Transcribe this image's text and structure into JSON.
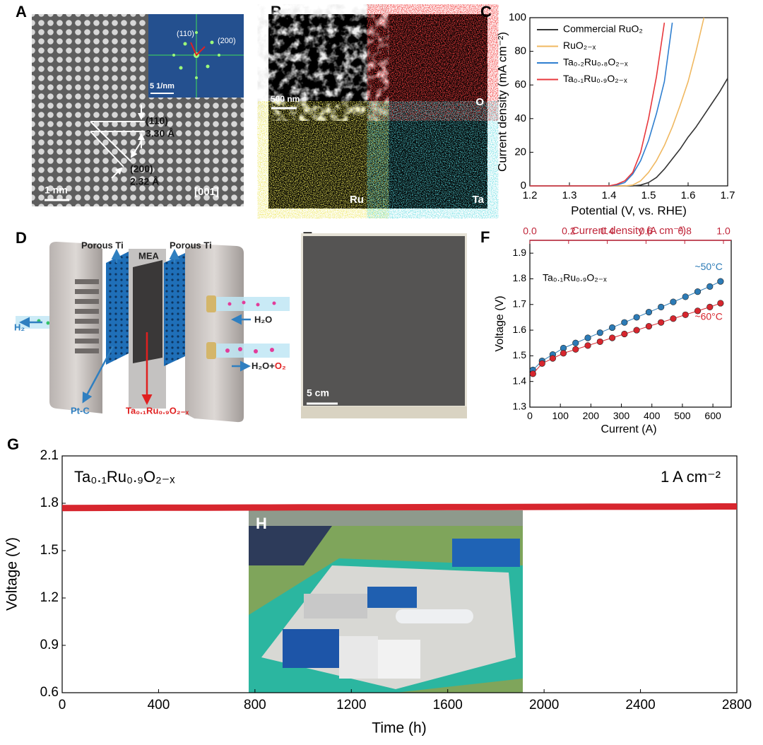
{
  "panels": {
    "a": {
      "label": "A",
      "fft_spot_1": "(110)",
      "fft_spot_2": "(200)",
      "fft_scale": "5 1/nm",
      "plane_1": "(110)",
      "spacing_1": "3.30 Å",
      "plane_2": "(200)",
      "spacing_2": "2.32 Å",
      "scale": "1 nm",
      "zone_axis": "[001̄]"
    },
    "b": {
      "label": "B",
      "scale": "500 nm",
      "maps": [
        "O",
        "Ru",
        "Ta"
      ]
    },
    "d": {
      "label": "D",
      "parts": [
        "Porous Ti",
        "MEA",
        "Porous Ti"
      ],
      "cathode_gas": "H₂",
      "inlet": "H₂O",
      "outlet": "H₂O+",
      "outlet_o2": "O₂",
      "cathode": "Pt-C",
      "anode": "Ta₀.₁Ru₀.₉O₂₋ₓ"
    },
    "e": {
      "label": "E",
      "scale": "5 cm"
    },
    "h": {
      "label": "H"
    }
  },
  "chart_data": [
    {
      "type": "line",
      "panel_label": "C",
      "x": [
        1.2,
        1.3,
        1.4,
        1.42,
        1.44,
        1.46,
        1.48,
        1.5,
        1.52,
        1.54,
        1.56,
        1.58,
        1.6,
        1.62,
        1.64,
        1.66,
        1.68,
        1.7
      ],
      "series": [
        {
          "name": "Commercial RuO₂",
          "color": "#333333",
          "values": [
            0,
            0,
            0,
            0,
            0,
            0,
            0.5,
            2,
            5,
            10,
            16,
            22,
            29,
            35,
            42,
            49,
            56,
            64
          ]
        },
        {
          "name": "RuO₂₋ₓ",
          "color": "#f0b860",
          "values": [
            0,
            0,
            0,
            0,
            0,
            0.5,
            3,
            8,
            15,
            24,
            35,
            48,
            62,
            80,
            100,
            null,
            null,
            null
          ]
        },
        {
          "name": "Ta₀.₂Ru₀.₈O₂₋ₓ",
          "color": "#2f7fd0",
          "values": [
            0,
            0,
            0,
            0.5,
            2,
            7,
            15,
            27,
            43,
            62,
            97,
            null,
            null,
            null,
            null,
            null,
            null,
            null
          ]
        },
        {
          "name": "Ta₀.₁Ru₀.₉O₂₋ₓ",
          "color": "#e8383d",
          "values": [
            0,
            0,
            0,
            1,
            3,
            8,
            20,
            40,
            65,
            97,
            null,
            null,
            null,
            null,
            null,
            null,
            null,
            null
          ]
        }
      ],
      "xlabel": "Potential (V, vs. RHE)",
      "ylabel": "Current density (mA cm⁻²)",
      "xlim": [
        1.2,
        1.7
      ],
      "ylim": [
        0,
        100
      ],
      "xticks": [
        1.2,
        1.3,
        1.4,
        1.5,
        1.6,
        1.7
      ],
      "yticks": [
        0,
        20,
        40,
        60,
        80,
        100
      ],
      "legend": "upper left",
      "grid": false
    },
    {
      "type": "line",
      "panel_label": "F",
      "markers": true,
      "x": [
        10,
        40,
        75,
        110,
        150,
        190,
        230,
        270,
        310,
        350,
        390,
        430,
        470,
        510,
        550,
        590,
        625
      ],
      "series": [
        {
          "name": "~50°C",
          "color": "#2c7bb6",
          "values": [
            1.445,
            1.48,
            1.505,
            1.53,
            1.55,
            1.57,
            1.59,
            1.61,
            1.63,
            1.65,
            1.67,
            1.69,
            1.71,
            1.73,
            1.75,
            1.77,
            1.79
          ]
        },
        {
          "name": "~60°C",
          "color": "#d7262e",
          "values": [
            1.43,
            1.47,
            1.49,
            1.51,
            1.525,
            1.54,
            1.555,
            1.57,
            1.585,
            1.6,
            1.615,
            1.63,
            1.645,
            1.66,
            1.675,
            1.69,
            1.705
          ]
        }
      ],
      "annotations": [
        "Ta₀.₁Ru₀.₉O₂₋ₓ"
      ],
      "xlabel": "Current (A)",
      "ylabel": "Voltage (V)",
      "x2label": "Current density (A cm⁻²)",
      "x2_color": "#c0263a",
      "xlim": [
        0,
        660
      ],
      "ylim": [
        1.3,
        1.95
      ],
      "x2lim": [
        0,
        1.04
      ],
      "xticks": [
        0,
        100,
        200,
        300,
        400,
        500,
        600
      ],
      "yticks": [
        1.3,
        1.4,
        1.5,
        1.6,
        1.7,
        1.8,
        1.9
      ],
      "x2ticks": [
        {
          "value": 0,
          "label": "0.0"
        },
        0.2,
        0.4,
        0.6,
        0.8,
        {
          "value": 1,
          "label": "1.0"
        }
      ],
      "legend": "inline",
      "grid": false
    },
    {
      "type": "line",
      "panel_label": "G",
      "x": [
        0,
        200,
        400,
        600,
        800,
        1000,
        1200,
        1400,
        1600,
        1800,
        2000,
        2200,
        2400,
        2600,
        2800
      ],
      "series": [
        {
          "color": "#d7262e",
          "values": [
            1.77,
            1.771,
            1.772,
            1.772,
            1.773,
            1.774,
            1.774,
            1.775,
            1.776,
            1.776,
            1.777,
            1.778,
            1.778,
            1.779,
            1.78
          ]
        }
      ],
      "annotations": [
        "Ta₀.₁Ru₀.₉O₂₋ₓ",
        "1 A cm⁻²"
      ],
      "xlabel": "Time (h)",
      "ylabel": "Voltage (V)",
      "xlim": [
        0,
        2800
      ],
      "ylim": [
        0.6,
        2.1
      ],
      "xticks": [
        0,
        400,
        800,
        1200,
        1600,
        2000,
        2400,
        2800
      ],
      "yticks": [
        0.6,
        0.9,
        1.2,
        1.5,
        1.8,
        2.1
      ],
      "grid": false
    }
  ]
}
